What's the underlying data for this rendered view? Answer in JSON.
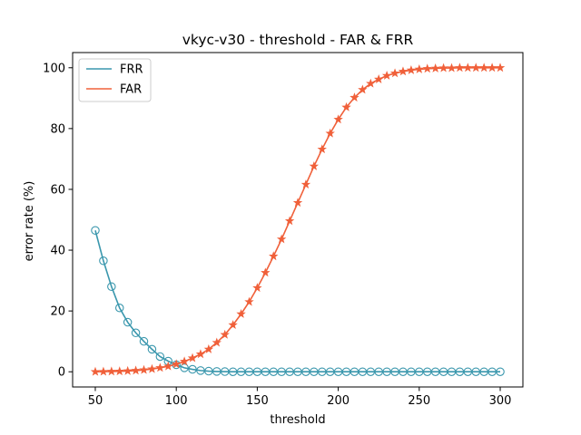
{
  "chart_data": {
    "type": "line",
    "title": "vkyc-v30 - threshold - FAR & FRR",
    "xlabel": "threshold",
    "ylabel": "error rate (%)",
    "xlim": [
      36,
      314
    ],
    "ylim": [
      -5,
      105
    ],
    "xticks": [
      50,
      100,
      150,
      200,
      250,
      300
    ],
    "yticks": [
      0,
      20,
      40,
      60,
      80,
      100
    ],
    "grid": false,
    "legend_position": "top-left",
    "x": [
      50,
      55,
      60,
      65,
      70,
      75,
      80,
      85,
      90,
      95,
      100,
      105,
      110,
      115,
      120,
      125,
      130,
      135,
      140,
      145,
      150,
      155,
      160,
      165,
      170,
      175,
      180,
      185,
      190,
      195,
      200,
      205,
      210,
      215,
      220,
      225,
      230,
      235,
      240,
      245,
      250,
      255,
      260,
      265,
      270,
      275,
      280,
      285,
      290,
      295,
      300
    ],
    "series": [
      {
        "name": "FRR",
        "color": "#3a97ad",
        "marker": "circle",
        "values": [
          46.5,
          36.5,
          28.0,
          21.0,
          16.3,
          12.8,
          10.0,
          7.4,
          5.0,
          3.5,
          2.3,
          1.3,
          0.8,
          0.4,
          0.2,
          0.1,
          0.05,
          0,
          0,
          0,
          0,
          0,
          0,
          0,
          0,
          0,
          0,
          0,
          0,
          0,
          0,
          0,
          0,
          0,
          0,
          0,
          0,
          0,
          0,
          0,
          0,
          0,
          0,
          0,
          0,
          0,
          0,
          0,
          0,
          0,
          0
        ]
      },
      {
        "name": "FAR",
        "color": "#f0603a",
        "marker": "star",
        "values": [
          0,
          0.05,
          0.1,
          0.15,
          0.25,
          0.4,
          0.6,
          0.9,
          1.3,
          1.8,
          2.5,
          3.4,
          4.5,
          5.8,
          7.4,
          9.6,
          12.2,
          15.4,
          19.0,
          23.0,
          27.6,
          32.6,
          38.0,
          43.6,
          49.6,
          55.6,
          61.6,
          67.6,
          73.2,
          78.4,
          83.0,
          87.0,
          90.2,
          92.8,
          94.8,
          96.2,
          97.4,
          98.2,
          98.8,
          99.2,
          99.5,
          99.7,
          99.8,
          99.9,
          99.9,
          100,
          100,
          100,
          100,
          100,
          100
        ]
      }
    ]
  }
}
